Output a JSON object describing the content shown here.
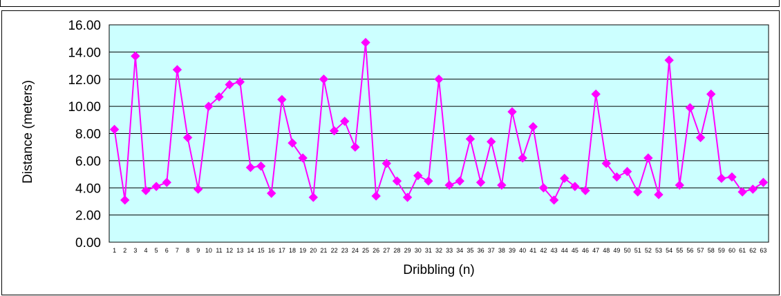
{
  "chart_data": {
    "type": "line",
    "title": "",
    "xlabel": "Dribbling (n)",
    "ylabel": "Distance (meters)",
    "ylim": [
      0,
      16
    ],
    "y_ticks": [
      "0.00",
      "2.00",
      "4.00",
      "6.00",
      "8.00",
      "10.00",
      "12.00",
      "14.00",
      "16.00"
    ],
    "grid": true,
    "legend": "none",
    "colors": {
      "line": "#ff00ff",
      "plot_background": "#ccffff",
      "grid": "#000000"
    },
    "marker": "diamond",
    "categories": [
      "1",
      "2",
      "3",
      "4",
      "5",
      "6",
      "7",
      "8",
      "9",
      "10",
      "11",
      "12",
      "13",
      "14",
      "15",
      "16",
      "17",
      "18",
      "19",
      "20",
      "21",
      "22",
      "23",
      "24",
      "25",
      "26",
      "27",
      "28",
      "29",
      "30",
      "31",
      "32",
      "33",
      "34",
      "35",
      "36",
      "37",
      "38",
      "39",
      "40",
      "41",
      "42",
      "43",
      "44",
      "45",
      "46",
      "47",
      "48",
      "49",
      "50",
      "51",
      "52",
      "53",
      "54",
      "55",
      "56",
      "57",
      "58",
      "59",
      "60",
      "61",
      "62",
      "63"
    ],
    "series": [
      {
        "values": [
          8.3,
          3.1,
          13.7,
          3.8,
          4.1,
          4.4,
          12.7,
          7.7,
          3.9,
          10.0,
          10.7,
          11.6,
          11.8,
          5.5,
          5.6,
          3.6,
          10.5,
          7.3,
          6.2,
          3.3,
          12.0,
          8.2,
          8.9,
          7.0,
          14.7,
          3.4,
          5.8,
          4.5,
          3.3,
          4.9,
          4.5,
          12.0,
          4.2,
          4.5,
          7.6,
          4.4,
          7.4,
          4.2,
          9.6,
          6.2,
          8.5,
          4.0,
          3.1,
          4.7,
          4.1,
          3.8,
          10.9,
          5.8,
          4.8,
          5.2,
          3.7,
          6.2,
          3.5,
          13.4,
          4.2,
          9.9,
          7.7,
          10.9,
          4.7,
          4.8,
          3.7,
          3.9,
          4.4
        ]
      }
    ]
  }
}
